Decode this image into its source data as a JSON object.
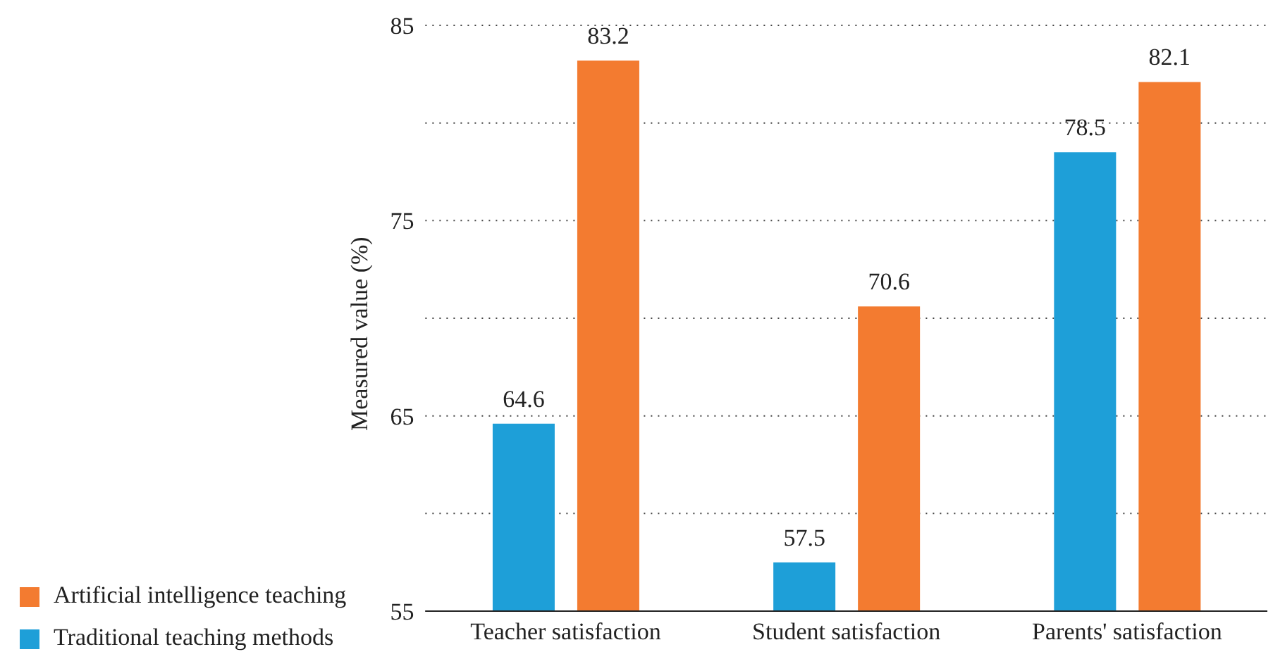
{
  "chart_data": {
    "type": "bar",
    "ylabel": "Measured value (%)",
    "categories": [
      "Teacher satisfaction",
      "Student satisfaction",
      "Parents' satisfaction"
    ],
    "series": [
      {
        "name": "Traditional teaching methods",
        "color": "#1e9fd8",
        "values": [
          64.6,
          57.5,
          78.5
        ]
      },
      {
        "name": "Artificial intelligence teaching",
        "color": "#f37b30",
        "values": [
          83.2,
          70.6,
          82.1
        ]
      }
    ],
    "ylim": [
      55,
      85
    ],
    "yticks": [
      55,
      {
        "value": 60,
        "label": null
      },
      65,
      {
        "value": 70,
        "label": null
      },
      75,
      {
        "value": 80,
        "label": null
      },
      85
    ],
    "grid": "y",
    "legend": "bottom left",
    "data_labels": true
  }
}
